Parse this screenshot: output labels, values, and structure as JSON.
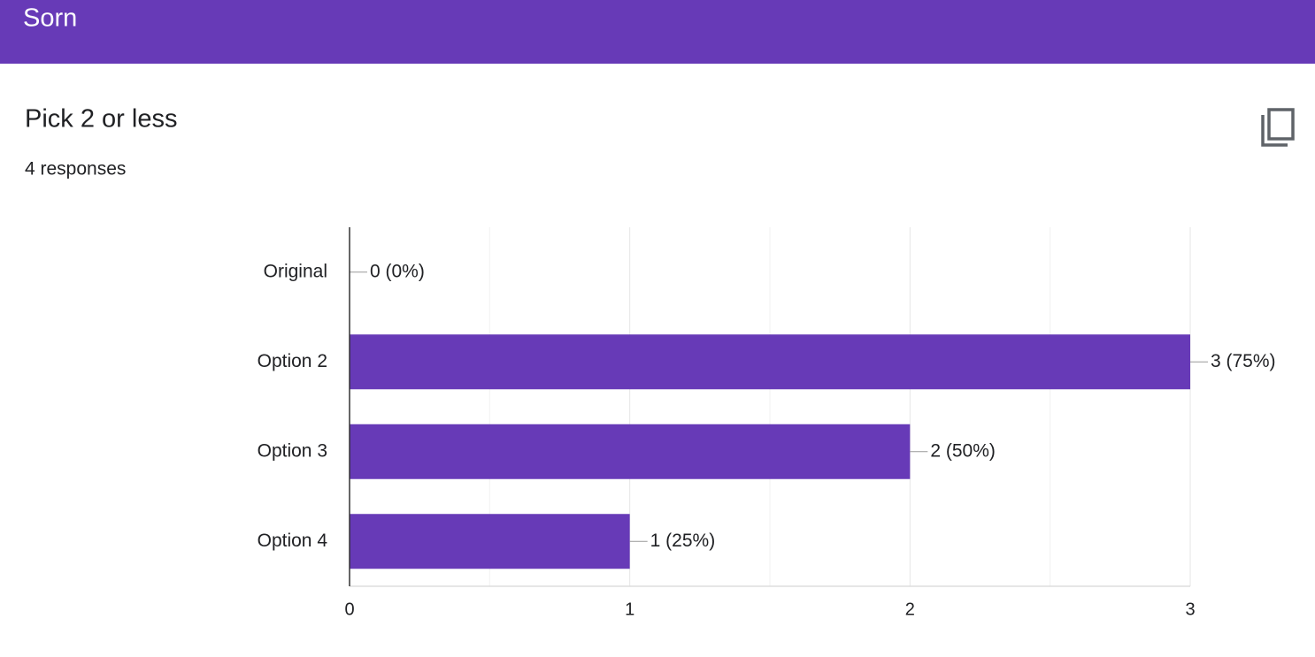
{
  "header": {
    "title": "Sorn"
  },
  "chart_data": {
    "type": "bar",
    "orientation": "horizontal",
    "title": "Pick 2 or less",
    "subtitle": "4 responses",
    "categories": [
      "Original",
      "Option 2",
      "Option 3",
      "Option 4"
    ],
    "values": [
      0,
      3,
      2,
      1
    ],
    "value_labels": [
      "0 (0%)",
      "3 (75%)",
      "2 (50%)",
      "1 (25%)"
    ],
    "color": "#673ab7",
    "xlim": [
      0,
      3
    ],
    "xticks": [
      0,
      1,
      2,
      3
    ],
    "xminorticks": [
      0.5,
      1.5,
      2.5
    ],
    "grid": true
  }
}
